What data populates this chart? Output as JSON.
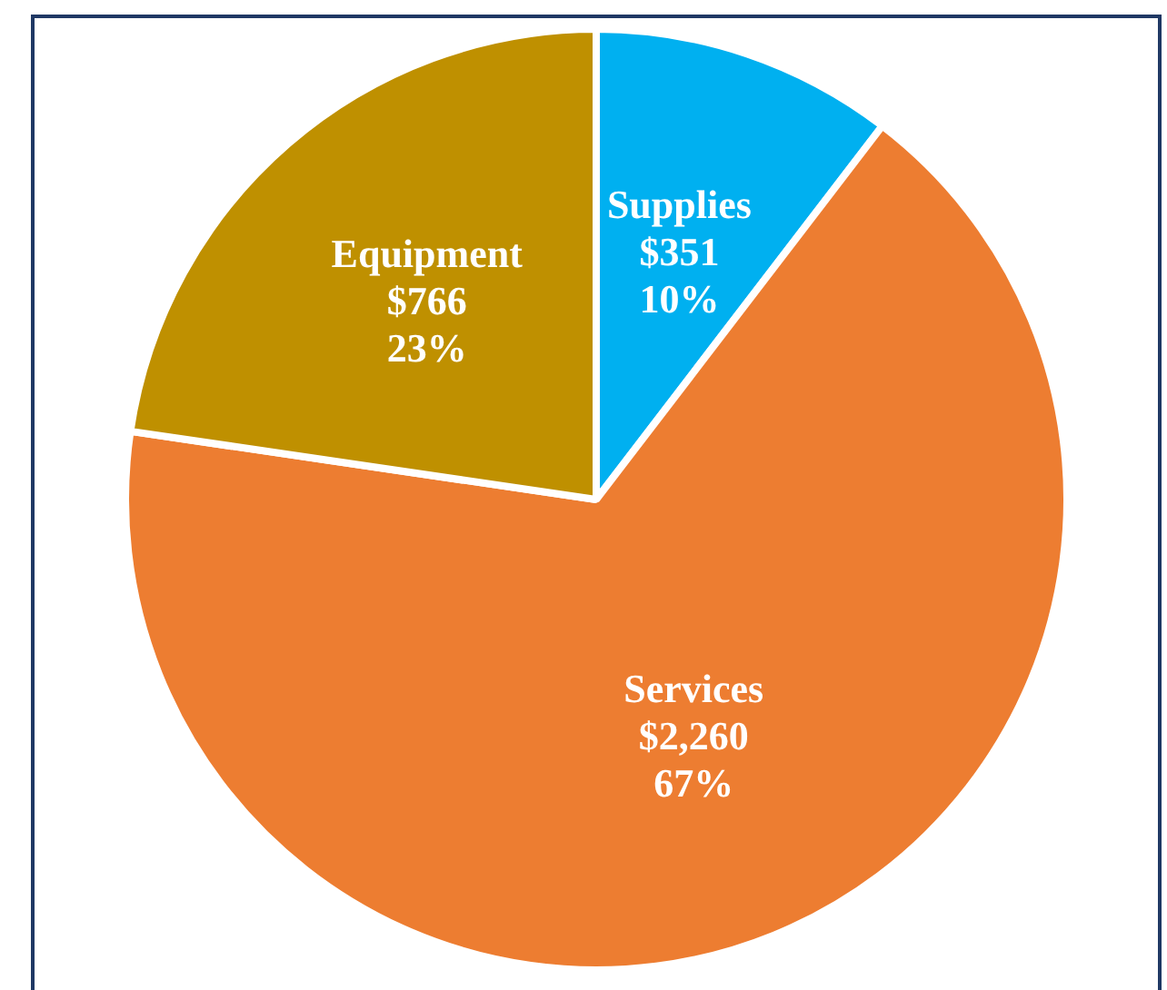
{
  "chart_data": {
    "type": "pie",
    "categories": [
      "Supplies",
      "Services",
      "Equipment"
    ],
    "values": [
      351,
      2260,
      766
    ],
    "colors": [
      "#00b0f0",
      "#ed7d31",
      "#bf9000"
    ],
    "value_labels": [
      "$351\n10%",
      "$2,260\n67%",
      "$766\n23%"
    ],
    "legend": false
  }
}
